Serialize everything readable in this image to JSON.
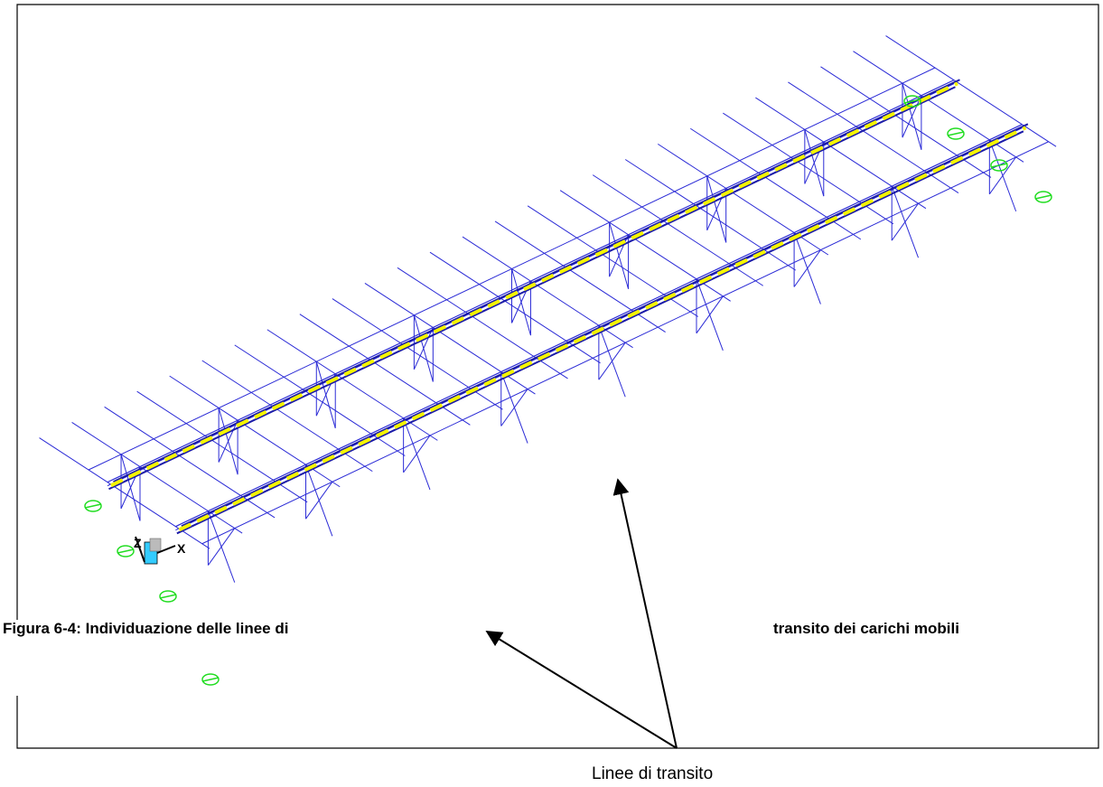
{
  "caption": {
    "part1": "Figura 6-4: Individuazione delle linee di",
    "part2": "transito dei carichi mobili"
  },
  "callout_label": "Linee di transito",
  "colors": {
    "frame": "#000000",
    "structure": "#2b2bd6",
    "lane_center": "#f5f500",
    "lane_edge": "#1a1aa8",
    "support": "#22dd22",
    "arrow": "#000000"
  },
  "axes_labels": {
    "z": "Z",
    "x": "X"
  },
  "icons": [
    "support-icon",
    "axis-gizmo-icon",
    "arrow-icon"
  ]
}
